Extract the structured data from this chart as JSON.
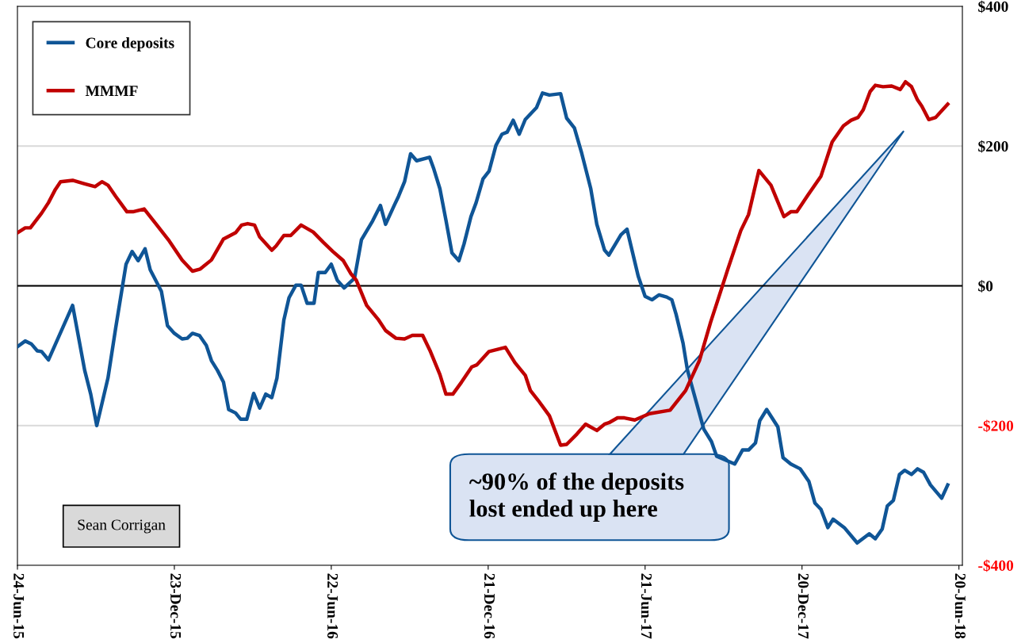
{
  "chart_data": {
    "type": "line",
    "series": [
      {
        "name": "Core deposits",
        "color": "#0f5596",
        "x": [
          "2015-06-24",
          "2015-07-03",
          "2015-07-10",
          "2015-07-17",
          "2015-07-22",
          "2015-07-30",
          "2015-08-27",
          "2015-09-10",
          "2015-09-17",
          "2015-09-24",
          "2015-10-07",
          "2015-10-16",
          "2015-10-28",
          "2015-11-04",
          "2015-11-11",
          "2015-11-19",
          "2015-11-25",
          "2015-12-08",
          "2015-12-15",
          "2015-12-23",
          "2016-01-01",
          "2016-01-07",
          "2016-01-13",
          "2016-01-21",
          "2016-01-29",
          "2016-02-04",
          "2016-02-11",
          "2016-02-18",
          "2016-02-24",
          "2016-03-03",
          "2016-03-09",
          "2016-03-16",
          "2016-03-24",
          "2016-03-31",
          "2016-04-07",
          "2016-04-14",
          "2016-04-20",
          "2016-04-28",
          "2016-05-04",
          "2016-05-12",
          "2016-05-18",
          "2016-05-25",
          "2016-06-02",
          "2016-06-07",
          "2016-06-15",
          "2016-06-22",
          "2016-06-29",
          "2016-07-07",
          "2016-07-19",
          "2016-07-27",
          "2016-08-09",
          "2016-08-18",
          "2016-08-24",
          "2016-09-03",
          "2016-09-08",
          "2016-09-15",
          "2016-09-22",
          "2016-09-29",
          "2016-10-14",
          "2016-10-19",
          "2016-10-26",
          "2016-11-02",
          "2016-11-09",
          "2016-11-17",
          "2016-11-23",
          "2016-12-01",
          "2016-12-07",
          "2016-12-15",
          "2016-12-22",
          "2016-12-30",
          "2017-01-06",
          "2017-01-12",
          "2017-01-19",
          "2017-01-26",
          "2017-02-02",
          "2017-02-15",
          "2017-02-22",
          "2017-03-02",
          "2017-03-15",
          "2017-03-22",
          "2017-03-31",
          "2017-04-08",
          "2017-04-19",
          "2017-04-26",
          "2017-05-05",
          "2017-05-10",
          "2017-05-24",
          "2017-05-31",
          "2017-06-13",
          "2017-06-21",
          "2017-06-29",
          "2017-07-07",
          "2017-07-16",
          "2017-07-22",
          "2017-07-27",
          "2017-08-04",
          "2017-08-09",
          "2017-08-28",
          "2017-09-06",
          "2017-09-12",
          "2017-10-03",
          "2017-10-12",
          "2017-10-19",
          "2017-10-27",
          "2017-11-01",
          "2017-11-09",
          "2017-11-22",
          "2017-11-28",
          "2017-12-07",
          "2017-12-18",
          "2017-12-28",
          "2018-01-04",
          "2018-01-11",
          "2018-01-19",
          "2018-01-25",
          "2018-02-07",
          "2018-02-22",
          "2018-03-08",
          "2018-03-15",
          "2018-03-23",
          "2018-03-29",
          "2018-04-05",
          "2018-04-12",
          "2018-04-18",
          "2018-04-26",
          "2018-05-03",
          "2018-05-10",
          "2018-05-18",
          "2018-05-31",
          "2018-06-07"
        ],
        "values": [
          -87,
          -79,
          -83,
          -93,
          -94,
          -106,
          -28,
          -121,
          -155,
          -200,
          -132,
          -60,
          31,
          49,
          36,
          53,
          23,
          -8,
          -57,
          -68,
          -76,
          -75,
          -68,
          -71,
          -85,
          -107,
          -121,
          -138,
          -177,
          -182,
          -191,
          -191,
          -154,
          -175,
          -155,
          -160,
          -132,
          -49,
          -17,
          1,
          1,
          -25,
          -25,
          19,
          19,
          31,
          8,
          -3,
          11,
          66,
          93,
          115,
          88,
          115,
          128,
          149,
          189,
          179,
          184,
          167,
          139,
          94,
          47,
          36,
          60,
          99,
          119,
          153,
          164,
          201,
          217,
          220,
          237,
          217,
          238,
          255,
          276,
          273,
          275,
          240,
          226,
          192,
          139,
          88,
          51,
          44,
          73,
          81,
          14,
          -15,
          -20,
          -13,
          -16,
          -20,
          -41,
          -82,
          -120,
          -205,
          -223,
          -244,
          -255,
          -235,
          -235,
          -225,
          -193,
          -177,
          -202,
          -246,
          -255,
          -262,
          -280,
          -311,
          -320,
          -346,
          -334,
          -346,
          -368,
          -355,
          -362,
          -348,
          -315,
          -307,
          -270,
          -264,
          -270,
          -262,
          -267,
          -285,
          -304,
          -285
        ]
      },
      {
        "name": "MMMF",
        "color": "#c00000",
        "x": [
          "2015-06-24",
          "2015-07-03",
          "2015-07-09",
          "2015-07-22",
          "2015-07-30",
          "2015-08-07",
          "2015-08-13",
          "2015-08-27",
          "2015-09-10",
          "2015-09-22",
          "2015-09-30",
          "2015-10-07",
          "2015-10-16",
          "2015-10-29",
          "2015-11-05",
          "2015-11-18",
          "2015-12-02",
          "2015-12-16",
          "2016-01-01",
          "2016-01-13",
          "2016-01-22",
          "2016-02-04",
          "2016-02-18",
          "2016-03-03",
          "2016-03-10",
          "2016-03-17",
          "2016-03-25",
          "2016-03-31",
          "2016-04-14",
          "2016-04-19",
          "2016-04-28",
          "2016-05-06",
          "2016-05-18",
          "2016-06-01",
          "2016-06-13",
          "2016-06-24",
          "2016-07-06",
          "2016-07-15",
          "2016-07-21",
          "2016-08-02",
          "2016-08-16",
          "2016-08-24",
          "2016-09-05",
          "2016-09-15",
          "2016-09-24",
          "2016-10-06",
          "2016-10-15",
          "2016-10-26",
          "2016-11-02",
          "2016-11-10",
          "2016-11-20",
          "2016-12-02",
          "2016-12-08",
          "2016-12-22",
          "2017-01-10",
          "2017-01-21",
          "2017-02-02",
          "2017-02-08",
          "2017-02-17",
          "2017-03-02",
          "2017-03-15",
          "2017-03-22",
          "2017-04-03",
          "2017-04-13",
          "2017-04-26",
          "2017-05-05",
          "2017-05-10",
          "2017-05-20",
          "2017-05-28",
          "2017-06-09",
          "2017-06-26",
          "2017-07-20",
          "2017-08-07",
          "2017-08-23",
          "2017-09-05",
          "2017-09-14",
          "2017-09-25",
          "2017-10-10",
          "2017-10-19",
          "2017-10-31",
          "2017-11-14",
          "2017-11-29",
          "2017-12-07",
          "2017-12-14",
          "2017-12-28",
          "2018-01-11",
          "2018-01-24",
          "2018-02-06",
          "2018-02-15",
          "2018-02-23",
          "2018-03-01",
          "2018-03-09",
          "2018-03-15",
          "2018-03-24",
          "2018-04-03",
          "2018-04-13",
          "2018-04-19",
          "2018-04-26",
          "2018-05-03",
          "2018-05-08",
          "2018-05-16",
          "2018-05-24",
          "2018-06-01",
          "2018-06-07"
        ],
        "values": [
          76,
          83,
          83,
          104,
          119,
          138,
          149,
          151,
          146,
          142,
          149,
          144,
          128,
          106,
          106,
          110,
          88,
          66,
          37,
          21,
          24,
          37,
          67,
          76,
          87,
          89,
          87,
          70,
          51,
          57,
          72,
          72,
          87,
          77,
          62,
          49,
          36,
          17,
          8,
          -28,
          -49,
          -64,
          -75,
          -76,
          -71,
          -71,
          -94,
          -127,
          -155,
          -155,
          -138,
          -116,
          -113,
          -94,
          -88,
          -110,
          -128,
          -150,
          -164,
          -186,
          -228,
          -227,
          -212,
          -198,
          -207,
          -198,
          -196,
          -189,
          -189,
          -192,
          -183,
          -178,
          -150,
          -107,
          -52,
          -18,
          24,
          79,
          102,
          165,
          144,
          99,
          106,
          106,
          132,
          157,
          206,
          229,
          237,
          241,
          252,
          278,
          287,
          285,
          286,
          281,
          292,
          285,
          266,
          257,
          238,
          241,
          252,
          260
        ]
      }
    ],
    "xlim": [
      "2015-06-24",
      "2018-06-24"
    ],
    "xticks": [
      {
        "value": "2015-06-24",
        "label": "24-Jun-15"
      },
      {
        "value": "2015-12-23",
        "label": "23-Dec-15"
      },
      {
        "value": "2016-06-22",
        "label": "22-Jun-16"
      },
      {
        "value": "2016-12-21",
        "label": "21-Dec-16"
      },
      {
        "value": "2017-06-21",
        "label": "21-Jun-17"
      },
      {
        "value": "2017-12-20",
        "label": "20-Dec-17"
      },
      {
        "value": "2018-06-20",
        "label": "20-Jun-18"
      }
    ],
    "ylim": [
      -400,
      400
    ],
    "yticks": [
      {
        "value": -400,
        "label": "-$400"
      },
      {
        "value": -200,
        "label": "-$200"
      },
      {
        "value": 0,
        "label": "$0"
      },
      {
        "value": 200,
        "label": "$200"
      },
      {
        "value": 400,
        "label": "$400"
      }
    ],
    "grid": "y",
    "legend": "top left",
    "marker": "none",
    "line_style": "solid",
    "ref_lines": [
      {
        "axis": "y",
        "value": 0,
        "color": "#000000"
      }
    ],
    "annotations": [
      "~90% of the deposits\nlost ended up here",
      "Sean Corrigan"
    ]
  }
}
